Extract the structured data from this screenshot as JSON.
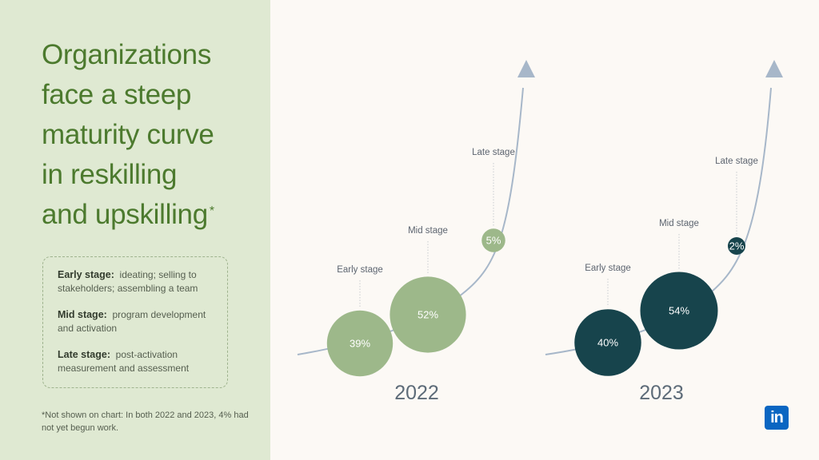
{
  "headline": {
    "lines": [
      "Organizations",
      "face a steep",
      "maturity curve",
      "in reskilling",
      "and upskilling"
    ],
    "marker": "*"
  },
  "legend": [
    {
      "term": "Early stage:",
      "desc": "ideating; selling to stakeholders; assembling a team"
    },
    {
      "term": "Mid stage:",
      "desc": "program development and activation"
    },
    {
      "term": "Late stage:",
      "desc": "post-activation measurement and assessment"
    }
  ],
  "footnote": "*Not shown on chart: In both 2022 and 2023, 4% had not yet begun work.",
  "logo": {
    "text": "in",
    "color": "#0a66c2"
  },
  "chart_data": [
    {
      "type": "scatter",
      "title": "2022",
      "categories": [
        "Early stage",
        "Mid stage",
        "Late stage"
      ],
      "values": [
        39,
        52,
        5
      ],
      "value_labels": [
        "39%",
        "52%",
        "5%"
      ],
      "bubble_color": "#9db88a",
      "text_color": "#ffffff",
      "curve_color": "#a7b7c9"
    },
    {
      "type": "scatter",
      "title": "2023",
      "categories": [
        "Early stage",
        "Mid stage",
        "Late stage"
      ],
      "values": [
        40,
        54,
        2
      ],
      "value_labels": [
        "40%",
        "54%",
        "2%"
      ],
      "bubble_color": "#17444c",
      "text_color": "#ffffff",
      "curve_color": "#a7b7c9"
    }
  ]
}
